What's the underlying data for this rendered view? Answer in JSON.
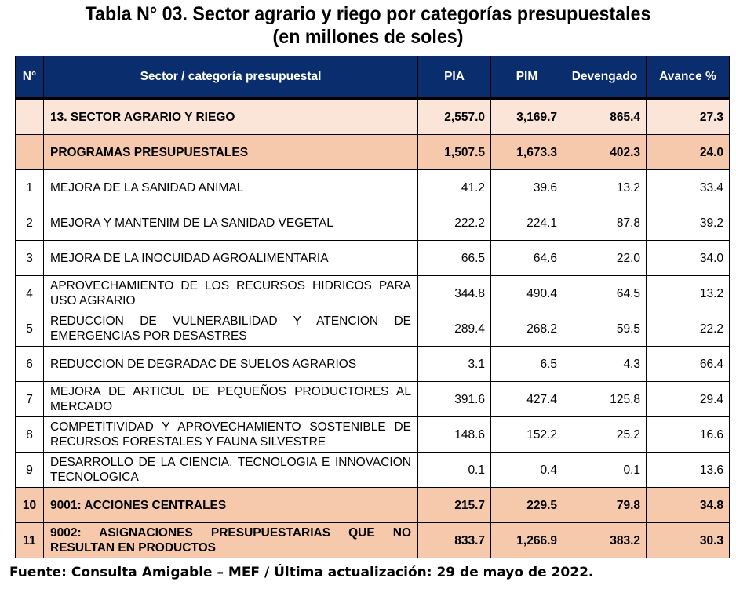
{
  "title": {
    "line1": "Tabla N° 03. Sector agrario y riego por categorías presupuestales",
    "line2": "(en millones de soles)"
  },
  "table": {
    "headers": {
      "num": "N°",
      "name": "Sector / categoría presupuestal",
      "pia": "PIA",
      "pim": "PIM",
      "dev": "Devengado",
      "avance": "Avance %"
    },
    "rows": [
      {
        "num": "",
        "name": "13. SECTOR AGRARIO Y RIEGO",
        "pia": "2,557.0",
        "pim": "3,169.7",
        "dev": "865.4",
        "avance": "27.3"
      },
      {
        "num": "",
        "name": "PROGRAMAS PRESUPUESTALES",
        "pia": "1,507.5",
        "pim": "1,673.3",
        "dev": "402.3",
        "avance": "24.0"
      },
      {
        "num": "1",
        "name": "MEJORA DE LA SANIDAD ANIMAL",
        "pia": "41.2",
        "pim": "39.6",
        "dev": "13.2",
        "avance": "33.4"
      },
      {
        "num": "2",
        "name": "MEJORA Y MANTENIM DE LA SANIDAD VEGETAL",
        "pia": "222.2",
        "pim": "224.1",
        "dev": "87.8",
        "avance": "39.2"
      },
      {
        "num": "3",
        "name": "MEJORA DE LA INOCUIDAD AGROALIMENTARIA",
        "pia": "66.5",
        "pim": "64.6",
        "dev": "22.0",
        "avance": "34.0"
      },
      {
        "num": "4",
        "name": "APROVECHAMIENTO DE LOS RECURSOS HIDRICOS PARA USO AGRARIO",
        "pia": "344.8",
        "pim": "490.4",
        "dev": "64.5",
        "avance": "13.2"
      },
      {
        "num": "5",
        "name": "REDUCCION DE VULNERABILIDAD Y ATENCION DE EMERGENCIAS POR DESASTRES",
        "pia": "289.4",
        "pim": "268.2",
        "dev": "59.5",
        "avance": "22.2"
      },
      {
        "num": "6",
        "name": "REDUCCION DE DEGRADAC DE SUELOS AGRARIOS",
        "pia": "3.1",
        "pim": "6.5",
        "dev": "4.3",
        "avance": "66.4"
      },
      {
        "num": "7",
        "name": "MEJORA DE ARTICUL DE PEQUEÑOS PRODUCTORES AL MERCADO",
        "pia": "391.6",
        "pim": "427.4",
        "dev": "125.8",
        "avance": "29.4"
      },
      {
        "num": "8",
        "name": "COMPETITIVIDAD Y APROVECHAMIENTO SOSTENIBLE DE RECURSOS FORESTALES Y FAUNA SILVESTRE",
        "pia": "148.6",
        "pim": "152.2",
        "dev": "25.2",
        "avance": "16.6"
      },
      {
        "num": "9",
        "name": "DESARROLLO DE LA CIENCIA, TECNOLOGIA E INNOVACION TECNOLOGICA",
        "pia": "0.1",
        "pim": "0.4",
        "dev": "0.1",
        "avance": "13.6"
      },
      {
        "num": "10",
        "name": "9001: ACCIONES CENTRALES",
        "pia": "215.7",
        "pim": "229.5",
        "dev": "79.8",
        "avance": "34.8"
      },
      {
        "num": "11",
        "name": "9002: ASIGNACIONES PRESUPUESTARIAS QUE NO RESULTAN EN PRODUCTOS",
        "pia": "833.7",
        "pim": "1,266.9",
        "dev": "383.2",
        "avance": "30.3"
      }
    ]
  },
  "source": "Fuente: Consulta Amigable – MEF / Última actualización: 29 de mayo de 2022.",
  "colors": {
    "header_bg": "#0a2d6e",
    "sector_row_bg": "#fbe5d9",
    "highlight_row_bg": "#f6c9ad"
  }
}
